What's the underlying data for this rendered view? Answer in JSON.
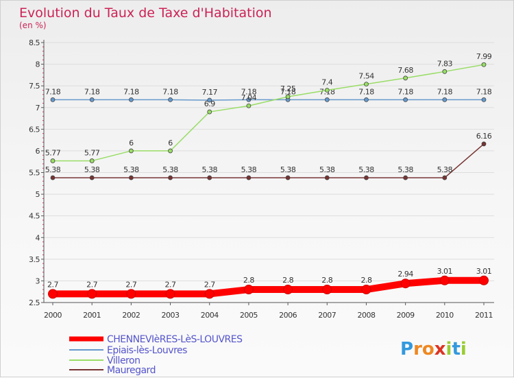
{
  "chart_data": {
    "type": "line",
    "title": "Evolution du Taux de Taxe d'Habitation",
    "subtitle": "(en %)",
    "xlabel": "",
    "ylabel": "",
    "categories": [
      "2000",
      "2001",
      "2002",
      "2003",
      "2004",
      "2005",
      "2006",
      "2007",
      "2008",
      "2009",
      "2010",
      "2011"
    ],
    "ylim": [
      2.5,
      8.5
    ],
    "yticks": [
      "2.5",
      "3",
      "3.5",
      "4",
      "4.5",
      "5",
      "5.5",
      "6",
      "6.5",
      "7",
      "7.5",
      "8",
      "8.5"
    ],
    "grid": "horizontal",
    "legend_position": "bottom-left",
    "series": [
      {
        "name": "CHENNEVIèRES-LèS-LOUVRES",
        "color": "#ff0000",
        "values": [
          2.7,
          2.7,
          2.7,
          2.7,
          2.7,
          2.8,
          2.8,
          2.8,
          2.8,
          2.94,
          3.01,
          3.01
        ],
        "labels": [
          "2.7",
          "2.7",
          "2.7",
          "2.7",
          "2.7",
          "2.8",
          "2.8",
          "2.8",
          "2.8",
          "2.94",
          "3.01",
          "3.01"
        ]
      },
      {
        "name": "Epiais-lès-Louvres",
        "color": "#6699cc",
        "values": [
          7.18,
          7.18,
          7.18,
          7.18,
          7.17,
          7.18,
          7.18,
          7.18,
          7.18,
          7.18,
          7.18,
          7.18
        ],
        "labels": [
          "7.18",
          "7.18",
          "7.18",
          "7.18",
          "7.17",
          "7.18",
          "7.18",
          "7.18",
          "7.18",
          "7.18",
          "7.18",
          "7.18"
        ]
      },
      {
        "name": "Villeron",
        "color": "#99dd66",
        "values": [
          5.77,
          5.77,
          6,
          6,
          6.9,
          7.04,
          7.25,
          7.4,
          7.54,
          7.68,
          7.83,
          7.99
        ],
        "labels": [
          "5.77",
          "5.77",
          "6",
          "6",
          "6.9",
          "7.04",
          "7.25",
          "7.4",
          "7.54",
          "7.68",
          "7.83",
          "7.99"
        ]
      },
      {
        "name": "Mauregard",
        "color": "#773333",
        "values": [
          5.38,
          5.38,
          5.38,
          5.38,
          5.38,
          5.38,
          5.38,
          5.38,
          5.38,
          5.38,
          5.38,
          6.16
        ],
        "labels": [
          "5.38",
          "5.38",
          "5.38",
          "5.38",
          "5.38",
          "5.38",
          "5.38",
          "5.38",
          "5.38",
          "5.38",
          "5.38",
          "6.16"
        ]
      }
    ]
  },
  "colors": {
    "title": "#cc2255",
    "legend_text": "#5555cc",
    "axis": "#555555",
    "grid": "#dddddd"
  },
  "logo": {
    "letters": [
      "P",
      "r",
      "o",
      "x",
      "i",
      "t",
      "i"
    ],
    "colors": [
      "#3399dd",
      "#ee8822",
      "#ee8822",
      "#dd3322",
      "#99cc33",
      "#3399dd",
      "#99cc33"
    ]
  }
}
